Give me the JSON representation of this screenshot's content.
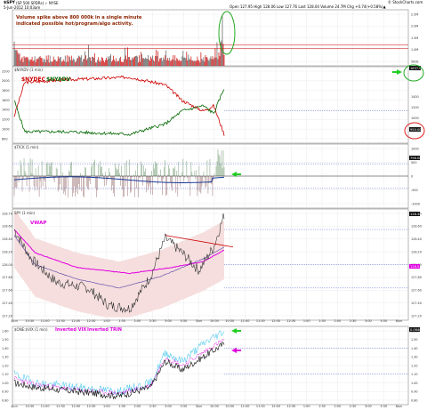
{
  "header": {
    "symbol": "$SPY",
    "name": "(SP 500 SPDRs) ✓ NYSE",
    "date": "5-Jun-2012 10:03am",
    "quote": "Open 127.95  High 128.06  Low 127.76  Last 128.04  Volume 24.7M  Chg +0.74(+0.58%)▲",
    "source": "© StockCharts.com"
  },
  "colors": {
    "red": "#cc0000",
    "green": "#006600",
    "magenta": "#e000e0",
    "blue": "#1a3a99",
    "gray": "#555555",
    "cyan": "#55ccee",
    "annotation": "#8b2500",
    "ellipse_green": "#22aa22",
    "ellipse_red": "#dd2222",
    "arrow_green": "#22cc22",
    "arrow_magenta": "#e000e0"
  },
  "chart_data": [
    {
      "type": "bar",
      "panel": "volume",
      "annotation_line1": "Volume spike above 800 000k in a single minute",
      "annotation_line2": "indicated possible hot/program/algo activity.",
      "tick_labels": [
        "2.5M",
        "2.0M",
        "1.5M",
        "1.0M",
        "500k"
      ],
      "ylim": [
        0,
        2600000
      ],
      "threshold": 800000,
      "grid": true,
      "legend": "none"
    },
    {
      "type": "line",
      "panel": "breadth",
      "title": "$NYADV (1 min)",
      "series_names": [
        "$NYDEC",
        "$NYADV"
      ],
      "tick_labels": [
        "2200",
        "2000",
        "1800",
        "1600",
        "1400",
        "1200",
        "1000",
        "800"
      ],
      "right_ticks": [
        "1400",
        "1200",
        "1000",
        "800"
      ],
      "last_labels": [
        "1837.00",
        "950.00"
      ],
      "ylim": [
        780,
        2250
      ],
      "grid": true,
      "legend": "top-left"
    },
    {
      "type": "area",
      "panel": "tick",
      "title": "$TICK (1 min)",
      "tick_labels": [
        "1000",
        "500",
        "0",
        "-500",
        "-1000"
      ],
      "last_label": "796.00",
      "ylim": [
        -1300,
        1300
      ],
      "grid": true,
      "legend": "none"
    },
    {
      "type": "line",
      "panel": "price",
      "title": "SPY (1 min)",
      "series_names": [
        "VWAP"
      ],
      "tick_labels": [
        "128.70",
        "128.60",
        "128.40",
        "128.20",
        "128.00",
        "127.80",
        "127.60",
        "127.40",
        "127.20"
      ],
      "last_labels": [
        "128.34",
        "128.51"
      ],
      "ylim": [
        127.05,
        128.95
      ],
      "grid": true,
      "legend": "top-left"
    },
    {
      "type": "line",
      "panel": "inverted",
      "title": "$ONE:$VIX (1 min)",
      "series_names": [
        "Inverted VIX",
        "Inverted TRIN"
      ],
      "tick_labels": [
        "1.60",
        "1.50",
        "1.40",
        "1.30",
        "1.20",
        "1.10",
        "1.00",
        "0.90",
        "0.80"
      ],
      "right_ticks": [
        "0.0600",
        "0.0580",
        "0.0575",
        "0.0570",
        "0.0565"
      ],
      "last_label": "0.0640",
      "ylim": [
        0.75,
        1.65
      ],
      "grid": true,
      "legend": "top-left"
    }
  ],
  "axis": {
    "times": [
      "4Jun",
      "10:30",
      "11:00",
      "11:30",
      "12:00",
      "12:30",
      "1:00",
      "1:30",
      "2:00",
      "2:30",
      "3:00",
      "3:30",
      "5Jun",
      "10:00",
      "10:30",
      "11:00",
      "11:30",
      "12:00",
      "12:30",
      "1:00",
      "1:30",
      "2:00",
      "2:30",
      "3:00",
      "3:30",
      "6Jun"
    ]
  }
}
